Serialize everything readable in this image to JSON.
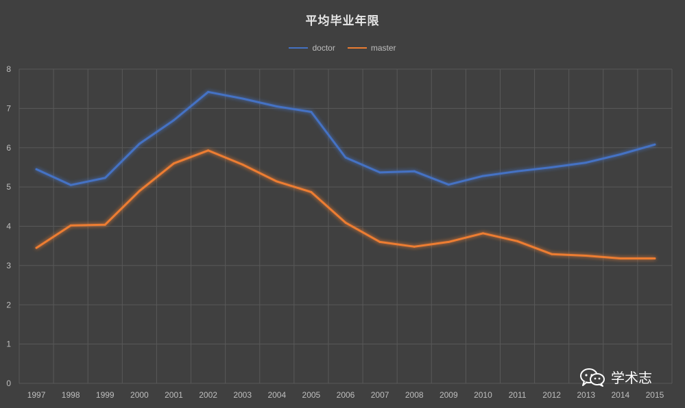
{
  "chart_data": {
    "type": "line",
    "title": "平均毕业年限",
    "xlabel": "",
    "ylabel": "",
    "ylim": [
      0,
      8
    ],
    "yticks": [
      0,
      1,
      2,
      3,
      4,
      5,
      6,
      7,
      8
    ],
    "grid": true,
    "legend_position": "top-center",
    "categories": [
      "1997",
      "1998",
      "1999",
      "2000",
      "2001",
      "2002",
      "2003",
      "2004",
      "2005",
      "2006",
      "2007",
      "2008",
      "2009",
      "2010",
      "2011",
      "2012",
      "2013",
      "2014",
      "2015"
    ],
    "series": [
      {
        "name": "doctor",
        "color": "#4472c4",
        "values": [
          5.45,
          5.05,
          5.23,
          6.1,
          6.7,
          7.42,
          7.25,
          7.05,
          6.91,
          5.75,
          5.37,
          5.4,
          5.06,
          5.28,
          5.4,
          5.5,
          5.62,
          5.83,
          6.08
        ]
      },
      {
        "name": "master",
        "color": "#ed7d31",
        "values": [
          3.45,
          4.02,
          4.04,
          4.9,
          5.6,
          5.93,
          5.57,
          5.14,
          4.87,
          4.09,
          3.6,
          3.48,
          3.6,
          3.82,
          3.62,
          3.29,
          3.25,
          3.18,
          3.18
        ]
      }
    ]
  },
  "watermark": {
    "text": "学术志",
    "icon": "wechat-icon"
  }
}
